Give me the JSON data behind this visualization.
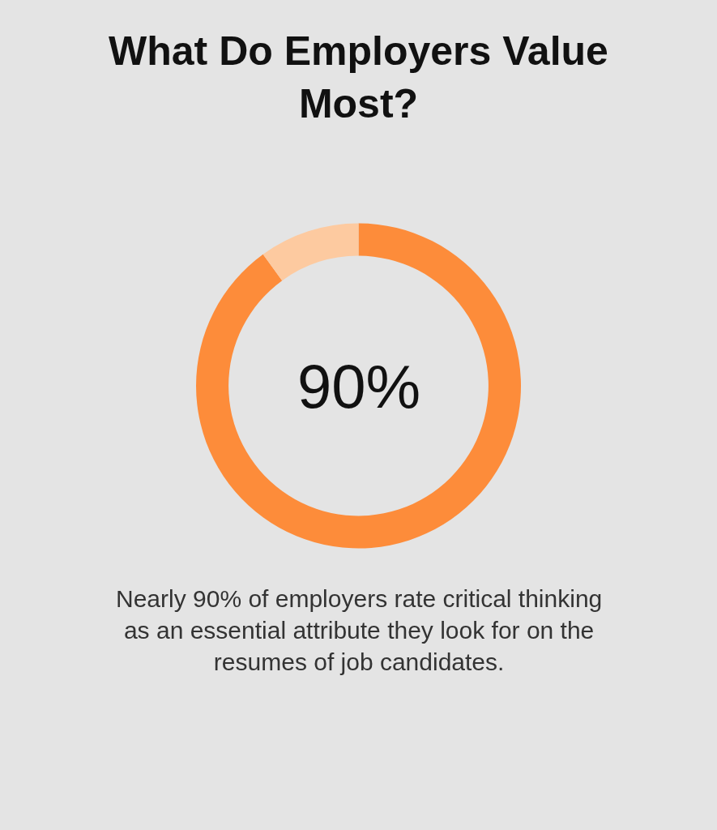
{
  "chart_data": {
    "type": "donut",
    "title": "What Do Employers Value Most?",
    "categories": [
      null,
      null
    ],
    "values": [
      90,
      10
    ],
    "colors": [
      "#fd8c3a",
      "#fdcaa0"
    ],
    "annotations": [
      "90%",
      "Nearly 90% of employers rate critical thinking as an essential attribute they look for on the resumes of job candidates."
    ],
    "legend": false
  }
}
